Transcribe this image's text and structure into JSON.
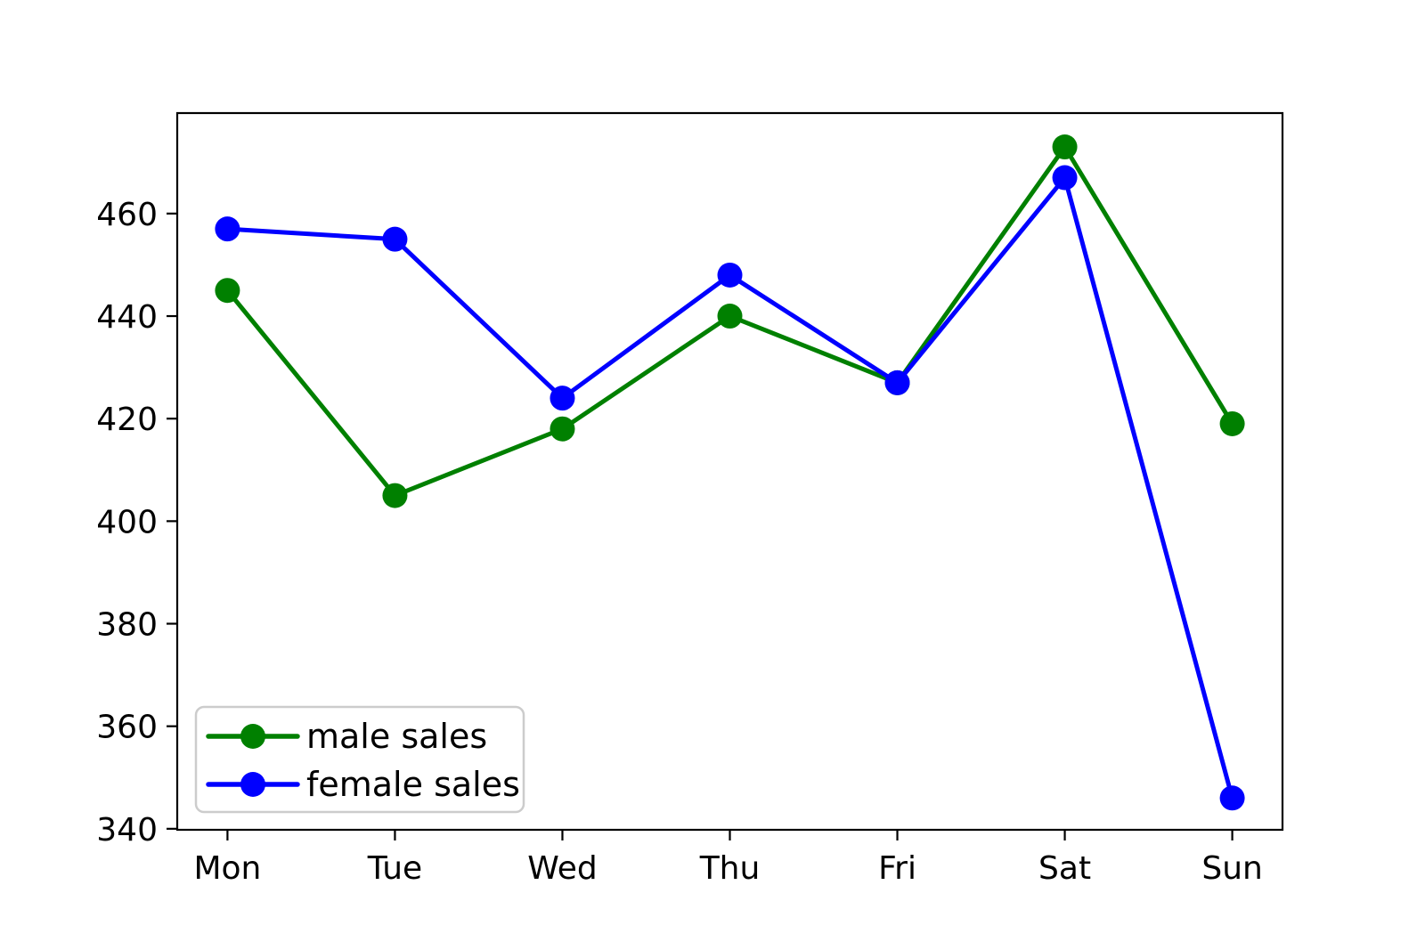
{
  "chart_data": {
    "type": "line",
    "title": "",
    "xlabel": "",
    "ylabel": "",
    "categories": [
      "Mon",
      "Tue",
      "Wed",
      "Thu",
      "Fri",
      "Sat",
      "Sun"
    ],
    "series": [
      {
        "name": "male sales",
        "color": "#008000",
        "marker": "circle",
        "values": [
          445,
          405,
          418,
          440,
          427,
          473,
          419
        ]
      },
      {
        "name": "female sales",
        "color": "#0000ff",
        "marker": "circle",
        "values": [
          457,
          455,
          424,
          448,
          427,
          467,
          346
        ]
      }
    ],
    "yticks": [
      340,
      360,
      380,
      400,
      420,
      440,
      460
    ],
    "ylim": [
      339.8,
      479.6
    ],
    "xlim": [
      -0.3,
      6.3
    ],
    "grid": false,
    "background": "#ffffff",
    "axis_color": "#000000",
    "legend": {
      "position": "lower left",
      "entries": [
        "male sales",
        "female sales"
      ],
      "border_color": "#cccccc",
      "fill_color": "#ffffff"
    }
  }
}
